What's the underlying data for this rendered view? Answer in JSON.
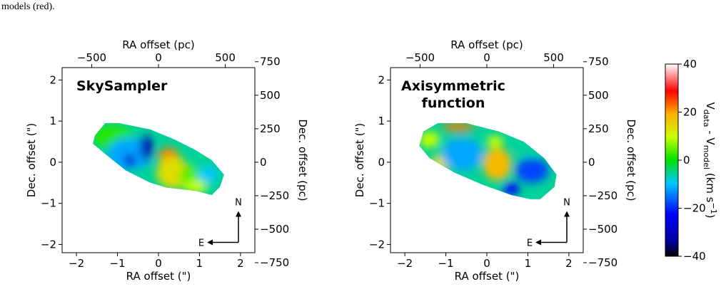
{
  "caption": {
    "text": "models (red)."
  },
  "colorbar": {
    "ticks": [
      40,
      20,
      0,
      -20,
      -40
    ],
    "tick_labels": [
      "40",
      "20",
      "0",
      "−20",
      "−40"
    ],
    "label": "V_data − V_model (km s⁻¹)",
    "label_parts": {
      "v1": "V",
      "s1": "data",
      "minus": " - V",
      "s2": "model",
      "unit": " (km s",
      "exp": "−1",
      "close": ")"
    },
    "range": [
      -40,
      40
    ],
    "colormap": "jet-like"
  },
  "compass": {
    "north": "N",
    "east": "E"
  },
  "chart_data": [
    {
      "type": "heatmap",
      "title": "SkySampler",
      "title_lines": [
        "SkySampler"
      ],
      "xlabel": "RA offset (\")",
      "ylabel": "Dec. offset (\")",
      "top_xlabel": "RA offset (pc)",
      "right_ylabel": "Dec. offset (pc)",
      "xlim": [
        -2.35,
        2.35
      ],
      "ylim": [
        -2.2,
        2.3
      ],
      "xticks": [
        -2,
        -1,
        0,
        1,
        2
      ],
      "xtick_labels": [
        "−2",
        "−1",
        "0",
        "1",
        "2"
      ],
      "yticks": [
        -2,
        -1,
        0,
        1,
        2
      ],
      "ytick_labels": [
        "−2",
        "−1",
        "0",
        "1",
        "2"
      ],
      "top_ticks_pc": [
        -500,
        0,
        500
      ],
      "top_tick_labels": [
        "−500",
        "0",
        "500"
      ],
      "right_ticks_pc": [
        750,
        500,
        250,
        0,
        -250,
        -500,
        -750
      ],
      "right_tick_labels": [
        "750",
        "500",
        "250",
        "0",
        "−250",
        "−500",
        "−750"
      ],
      "pc_per_arcsec": 307,
      "outline": [
        [
          -1.55,
          0.65
        ],
        [
          -1.3,
          0.95
        ],
        [
          -0.95,
          0.95
        ],
        [
          -0.2,
          0.8
        ],
        [
          0.4,
          0.55
        ],
        [
          0.9,
          0.3
        ],
        [
          1.3,
          0.05
        ],
        [
          1.6,
          -0.3
        ],
        [
          1.5,
          -0.6
        ],
        [
          1.3,
          -0.8
        ],
        [
          0.9,
          -0.7
        ],
        [
          0.2,
          -0.62
        ],
        [
          -0.2,
          -0.5
        ],
        [
          -0.8,
          -0.2
        ],
        [
          -1.3,
          0.2
        ],
        [
          -1.6,
          0.45
        ]
      ],
      "blobs": [
        {
          "x": -1.1,
          "y": 0.6,
          "v": 2,
          "rx": 0.5,
          "ry": 0.3
        },
        {
          "x": -0.7,
          "y": 0.2,
          "v": -12,
          "rx": 0.55,
          "ry": 0.4
        },
        {
          "x": -0.3,
          "y": 0.35,
          "v": -32,
          "rx": 0.15,
          "ry": 0.3
        },
        {
          "x": -0.7,
          "y": 0.05,
          "v": -28,
          "rx": 0.15,
          "ry": 0.15
        },
        {
          "x": 0.25,
          "y": 0.15,
          "v": 22,
          "rx": 0.25,
          "ry": 0.2
        },
        {
          "x": 0.35,
          "y": -0.25,
          "v": 14,
          "rx": 0.4,
          "ry": 0.4
        },
        {
          "x": 0.8,
          "y": -0.35,
          "v": 4,
          "rx": 0.3,
          "ry": 0.25
        },
        {
          "x": 1.2,
          "y": -0.3,
          "v": -10,
          "rx": 0.25,
          "ry": 0.2
        },
        {
          "x": 0.9,
          "y": -0.6,
          "v": 10,
          "rx": 0.3,
          "ry": 0.15
        }
      ]
    },
    {
      "type": "heatmap",
      "title": "Axisymmetric function",
      "title_lines": [
        "Axisymmetric",
        "function"
      ],
      "xlabel": "RA offset (\")",
      "ylabel": "Dec. offset (\")",
      "top_xlabel": "RA offset (pc)",
      "right_ylabel": "Dec. offset (pc)",
      "xlim": [
        -2.35,
        2.35
      ],
      "ylim": [
        -2.2,
        2.3
      ],
      "xticks": [
        -2,
        -1,
        0,
        1,
        2
      ],
      "xtick_labels": [
        "−2",
        "−1",
        "0",
        "1",
        "2"
      ],
      "yticks": [
        -2,
        -1,
        0,
        1,
        2
      ],
      "ytick_labels": [
        "−2",
        "−1",
        "0",
        "1",
        "2"
      ],
      "top_ticks_pc": [
        -500,
        0,
        500
      ],
      "top_tick_labels": [
        "−500",
        "0",
        "500"
      ],
      "right_ticks_pc": [
        750,
        500,
        250,
        0,
        -250,
        -500,
        -750
      ],
      "right_tick_labels": [
        "750",
        "500",
        "250",
        "0",
        "−250",
        "−500",
        "−750"
      ],
      "pc_per_arcsec": 307,
      "outline": [
        [
          -1.55,
          0.75
        ],
        [
          -1.2,
          0.95
        ],
        [
          -0.5,
          0.95
        ],
        [
          0.3,
          0.75
        ],
        [
          0.9,
          0.5
        ],
        [
          1.4,
          0.1
        ],
        [
          1.7,
          -0.3
        ],
        [
          1.65,
          -0.6
        ],
        [
          1.3,
          -0.9
        ],
        [
          1.05,
          -0.9
        ],
        [
          0.6,
          -0.8
        ],
        [
          -0.1,
          -0.55
        ],
        [
          -0.8,
          -0.25
        ],
        [
          -1.4,
          0.1
        ],
        [
          -1.65,
          0.4
        ]
      ],
      "blobs": [
        {
          "x": -0.7,
          "y": 0.85,
          "v": 22,
          "rx": 0.4,
          "ry": 0.1
        },
        {
          "x": -1.4,
          "y": 0.55,
          "v": 10,
          "rx": 0.25,
          "ry": 0.2
        },
        {
          "x": -1.1,
          "y": 0.0,
          "v": 14,
          "rx": 0.25,
          "ry": 0.2
        },
        {
          "x": -0.6,
          "y": 0.2,
          "v": -12,
          "rx": 0.5,
          "ry": 0.4
        },
        {
          "x": 0.25,
          "y": 0.0,
          "v": 36,
          "rx": 0.15,
          "ry": 0.2
        },
        {
          "x": 0.25,
          "y": -0.05,
          "v": 18,
          "rx": 0.35,
          "ry": 0.4
        },
        {
          "x": 0.2,
          "y": 0.5,
          "v": 10,
          "rx": 0.2,
          "ry": 0.15
        },
        {
          "x": 1.1,
          "y": -0.2,
          "v": -18,
          "rx": 0.4,
          "ry": 0.3
        },
        {
          "x": 0.6,
          "y": -0.65,
          "v": -22,
          "rx": 0.2,
          "ry": 0.15
        },
        {
          "x": 1.0,
          "y": 0.35,
          "v": -6,
          "rx": 0.3,
          "ry": 0.2
        }
      ]
    }
  ]
}
